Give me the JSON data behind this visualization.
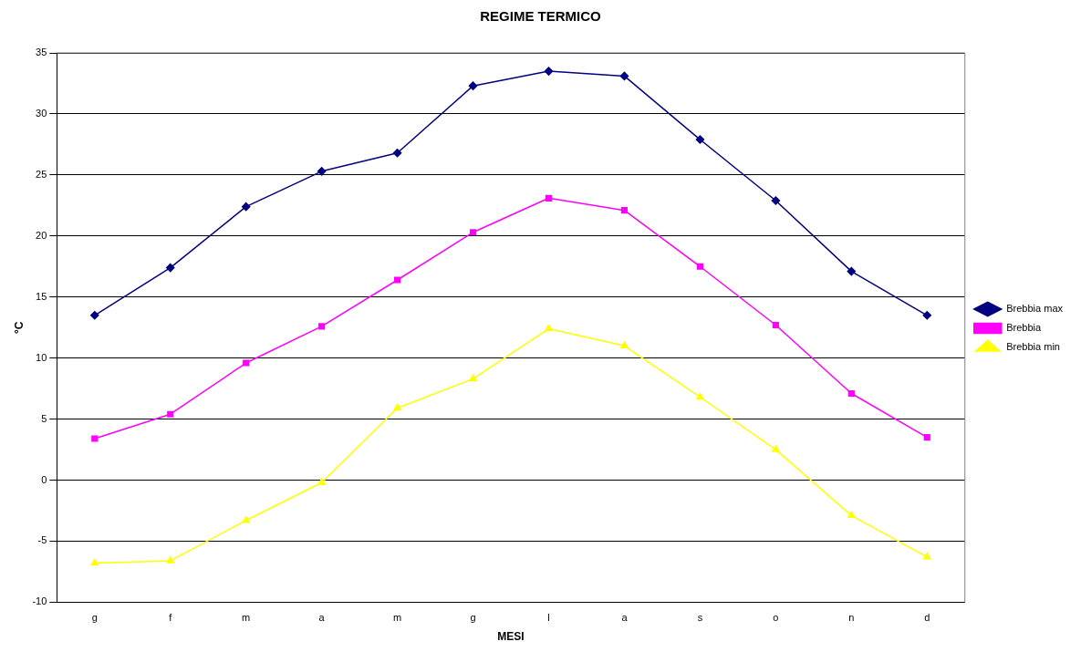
{
  "chart_data": {
    "type": "line",
    "title": "REGIME TERMICO",
    "xlabel": "MESI",
    "ylabel": "°C",
    "categories": [
      "g",
      "f",
      "m",
      "a",
      "m",
      "g",
      "l",
      "a",
      "s",
      "o",
      "n",
      "d"
    ],
    "ylim": [
      -10,
      35
    ],
    "yticks": [
      -10,
      -5,
      0,
      5,
      10,
      15,
      20,
      25,
      30,
      35
    ],
    "grid": "y",
    "legend": "right",
    "line_style": "solid",
    "series": [
      {
        "name": "Brebbia max",
        "color": "#000080",
        "marker": "diamond",
        "values": [
          13.5,
          17.4,
          22.4,
          25.3,
          26.8,
          32.3,
          33.5,
          33.1,
          27.9,
          22.9,
          17.1,
          13.5
        ]
      },
      {
        "name": "Brebbia",
        "color": "#ff00ff",
        "marker": "square",
        "values": [
          3.4,
          5.4,
          9.6,
          12.6,
          16.4,
          20.3,
          23.1,
          22.1,
          17.5,
          12.7,
          7.1,
          3.5
        ]
      },
      {
        "name": "Brebbia min",
        "color": "#ffff00",
        "marker": "triangle",
        "values": [
          -6.8,
          -6.6,
          -3.3,
          -0.2,
          5.9,
          8.3,
          12.4,
          11.0,
          6.8,
          2.5,
          -2.9,
          -6.3
        ]
      }
    ]
  }
}
